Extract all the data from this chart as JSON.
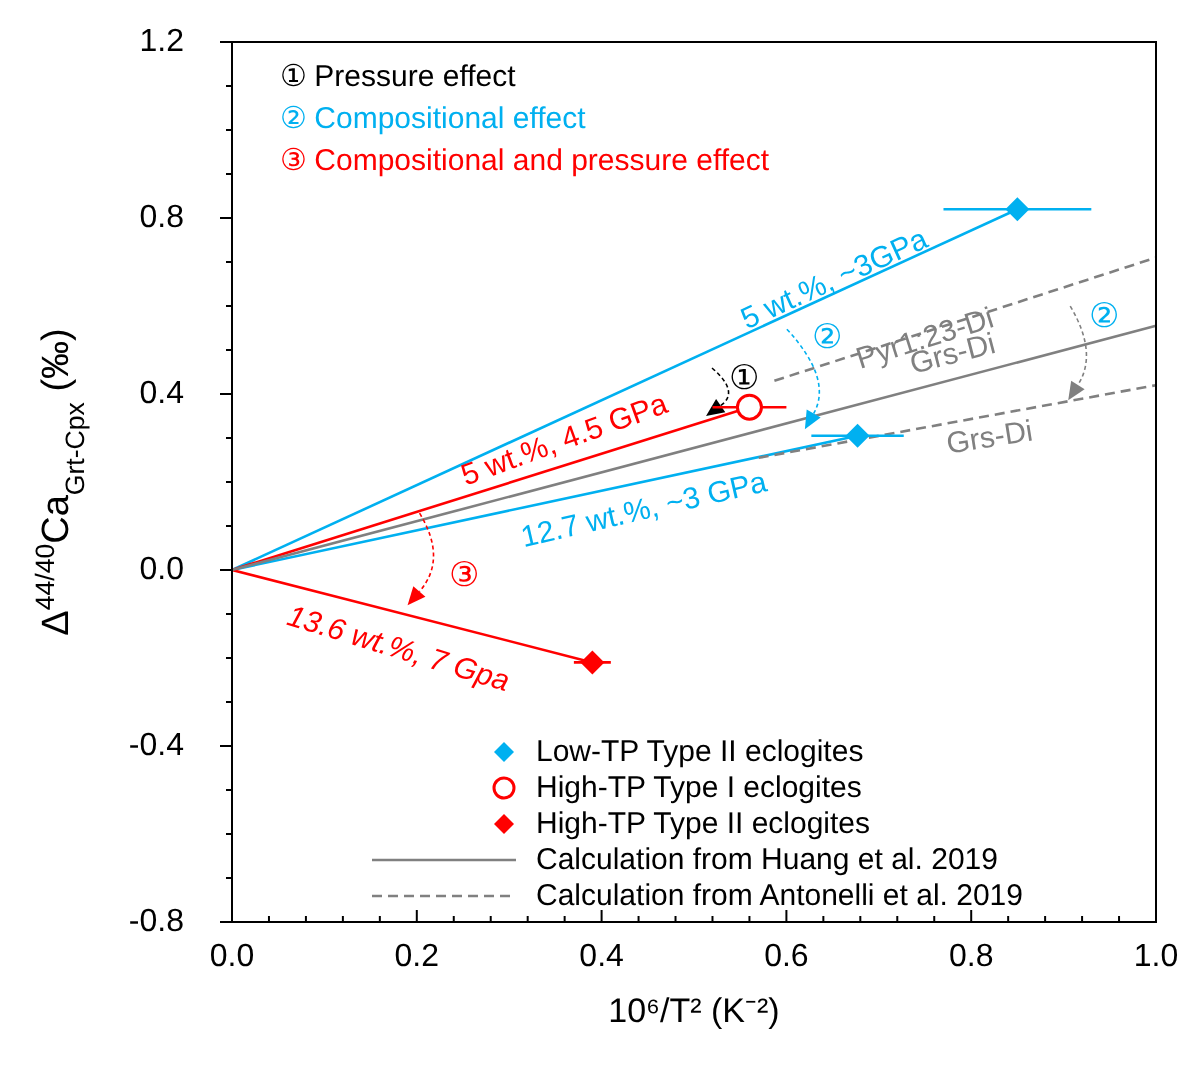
{
  "chart_data": {
    "type": "scatter",
    "xlabel": "10⁶/T² (K⁻²)",
    "ylabel": "Δ$^{44/40}$Ca$_{Grt-Cpx}$ (‰)",
    "xlim": [
      0,
      1
    ],
    "ylim": [
      -0.8,
      1.2
    ],
    "xticks": [
      {
        "value": 0,
        "label": "0.0"
      },
      {
        "value": 0.04,
        "label": null
      },
      {
        "value": 0.08,
        "label": null
      },
      {
        "value": 0.12,
        "label": null
      },
      {
        "value": 0.16,
        "label": null
      },
      0.2,
      {
        "value": 0.24,
        "label": null
      },
      {
        "value": 0.28,
        "label": null
      },
      {
        "value": 0.32,
        "label": null
      },
      {
        "value": 0.36,
        "label": null
      },
      0.4,
      {
        "value": 0.44,
        "label": null
      },
      {
        "value": 0.48,
        "label": null
      },
      {
        "value": 0.52,
        "label": null
      },
      {
        "value": 0.56,
        "label": null
      },
      0.6,
      {
        "value": 0.64,
        "label": null
      },
      {
        "value": 0.68,
        "label": null
      },
      {
        "value": 0.72,
        "label": null
      },
      {
        "value": 0.76,
        "label": null
      },
      0.8,
      {
        "value": 0.84,
        "label": null
      },
      {
        "value": 0.88,
        "label": null
      },
      {
        "value": 0.92,
        "label": null
      },
      {
        "value": 0.96,
        "label": null
      },
      {
        "value": 1,
        "label": "1.0"
      }
    ],
    "yticks": [
      -0.8,
      {
        "value": -0.7,
        "label": null
      },
      {
        "value": -0.6,
        "label": null
      },
      {
        "value": -0.5,
        "label": null
      },
      -0.4,
      {
        "value": -0.3,
        "label": null
      },
      {
        "value": -0.2,
        "label": null
      },
      {
        "value": -0.1,
        "label": null
      },
      {
        "value": 0,
        "label": "0.0"
      },
      {
        "value": 0.1,
        "label": null
      },
      {
        "value": 0.2,
        "label": null
      },
      {
        "value": 0.3,
        "label": null
      },
      0.4,
      {
        "value": 0.5,
        "label": null
      },
      {
        "value": 0.6,
        "label": null
      },
      {
        "value": 0.7,
        "label": null
      },
      0.8,
      {
        "value": 0.9,
        "label": null
      },
      {
        "value": 1,
        "label": null
      },
      {
        "value": 1.1,
        "label": null
      },
      1.2
    ],
    "grid": false,
    "legend": "bottom",
    "series": [
      {
        "name": "Low-TP Type II eclogites",
        "type": "scatter",
        "marker": "diamond",
        "color": "#00b0f0",
        "x": [
          0.85,
          0.677
        ],
        "values": [
          0.82,
          0.305
        ],
        "xerrors": [
          0.08,
          0.05
        ]
      },
      {
        "name": "High-TP Type I eclogites",
        "type": "scatter",
        "marker": "circle",
        "color": "#ff0000",
        "x": [
          0.56
        ],
        "values": [
          0.37
        ],
        "xerrors": [
          0.04
        ]
      },
      {
        "name": "High-TP Type II eclogites",
        "type": "scatter",
        "marker": "diamond",
        "color": "#ff0000",
        "x": [
          0.39
        ],
        "values": [
          -0.21
        ],
        "xerrors": [
          0.02
        ]
      },
      {
        "type": "line",
        "color": "#00b0f0",
        "x": [
          0,
          0.85
        ],
        "values": [
          0,
          0.82
        ],
        "line_style": "solid"
      },
      {
        "type": "line",
        "color": "#00b0f0",
        "x": [
          0,
          0.677
        ],
        "values": [
          0,
          0.305
        ],
        "line_style": "solid"
      },
      {
        "type": "line",
        "color": "#ff0000",
        "x": [
          0,
          0.56
        ],
        "values": [
          0,
          0.37
        ],
        "line_style": "solid"
      },
      {
        "type": "line",
        "color": "#ff0000",
        "x": [
          0,
          0.39
        ],
        "values": [
          0,
          -0.21
        ],
        "line_style": "solid"
      },
      {
        "name": "Calculation from Huang et al. 2019",
        "type": "line",
        "color": "#808080",
        "x": [
          0,
          1
        ],
        "values": [
          0,
          0.555
        ],
        "line_style": "solid"
      },
      {
        "name": "Calculation from Antonelli et al. 2019",
        "type": "line",
        "color": "#808080",
        "x": [
          0.587,
          1
        ],
        "values": [
          0.43,
          0.71
        ],
        "line_style": "dashed"
      },
      {
        "type": "line",
        "color": "#808080",
        "x": [
          0.57,
          1
        ],
        "values": [
          0.255,
          0.42
        ],
        "line_style": "dashed"
      }
    ],
    "annotations": [
      "① Pressure effect",
      "② Compositional effect",
      "③ Compositional and pressure effect",
      "5 wt.%, ~3GPa",
      "5 wt.%, 4.5 GPa",
      "12.7 wt.%, ~3 GPa",
      "13.6 wt.%, 7 Gpa",
      "Pyr1:23-Di",
      "Grs-Di",
      "Grs-Di",
      {
        "text": "①",
        "x": 0.513,
        "y": 0.35
      },
      {
        "text": "②",
        "x": 0.62,
        "y": 0.32
      },
      {
        "text": "②",
        "x": 0.905,
        "y": 0.386
      },
      {
        "text": "③",
        "x": 0.19,
        "y": -0.08
      }
    ]
  }
}
